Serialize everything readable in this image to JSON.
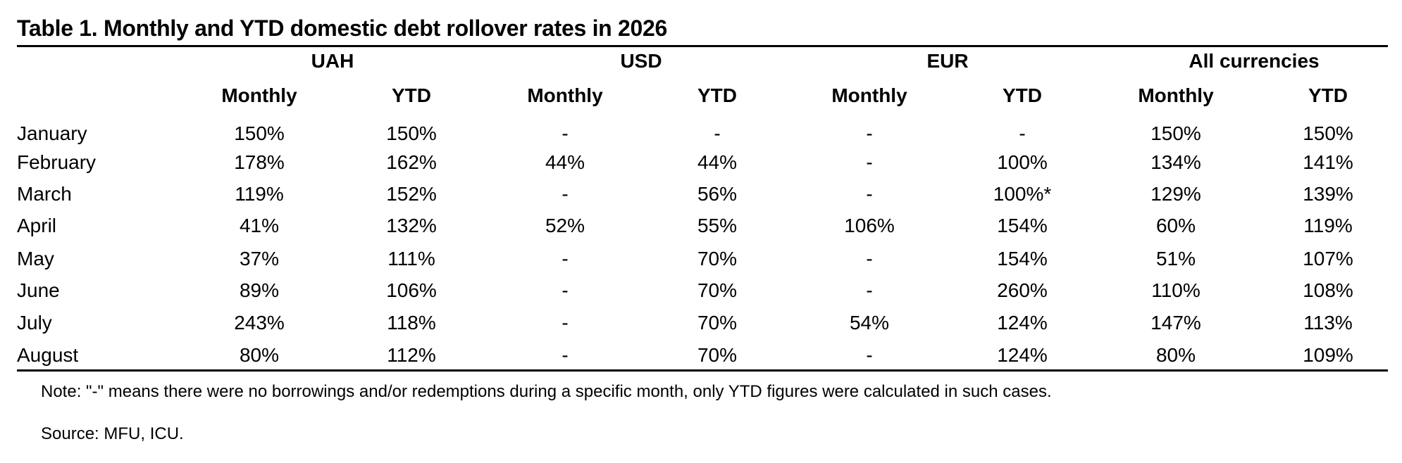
{
  "title": "Table 1. Monthly and YTD domestic debt rollover rates in 2026",
  "groups": [
    "UAH",
    "USD",
    "EUR",
    "All currencies"
  ],
  "subheaders": [
    "Monthly",
    "YTD",
    "Monthly",
    "YTD",
    "Monthly",
    "YTD",
    "Monthly",
    "YTD"
  ],
  "rows": [
    {
      "month": "January",
      "values": [
        "150%",
        "150%",
        "-",
        "-",
        "-",
        "-",
        "150%",
        "150%"
      ]
    },
    {
      "month": "February",
      "values": [
        "178%",
        "162%",
        "44%",
        "44%",
        "-",
        "100%",
        "134%",
        "141%"
      ]
    },
    {
      "month": "March",
      "values": [
        "119%",
        "152%",
        "-",
        "56%",
        "-",
        "100%*",
        "129%",
        "139%"
      ]
    },
    {
      "month": "April",
      "values": [
        "41%",
        "132%",
        "52%",
        "55%",
        "106%",
        "154%",
        "60%",
        "119%"
      ]
    },
    {
      "month": "May",
      "values": [
        "37%",
        "111%",
        "-",
        "70%",
        "-",
        "154%",
        "51%",
        "107%"
      ]
    },
    {
      "month": "June",
      "values": [
        "89%",
        "106%",
        "-",
        "70%",
        "-",
        "260%",
        "110%",
        "108%"
      ]
    },
    {
      "month": "July",
      "values": [
        "243%",
        "118%",
        "-",
        "70%",
        "54%",
        "124%",
        "147%",
        "113%"
      ]
    },
    {
      "month": "August",
      "values": [
        "80%",
        "112%",
        "-",
        "70%",
        "-",
        "124%",
        "80%",
        "109%"
      ]
    }
  ],
  "note": "Note: \"-\" means there were no borrowings and/or redemptions during a specific month, only YTD figures were calculated in such cases.",
  "source": "Source: MFU, ICU."
}
